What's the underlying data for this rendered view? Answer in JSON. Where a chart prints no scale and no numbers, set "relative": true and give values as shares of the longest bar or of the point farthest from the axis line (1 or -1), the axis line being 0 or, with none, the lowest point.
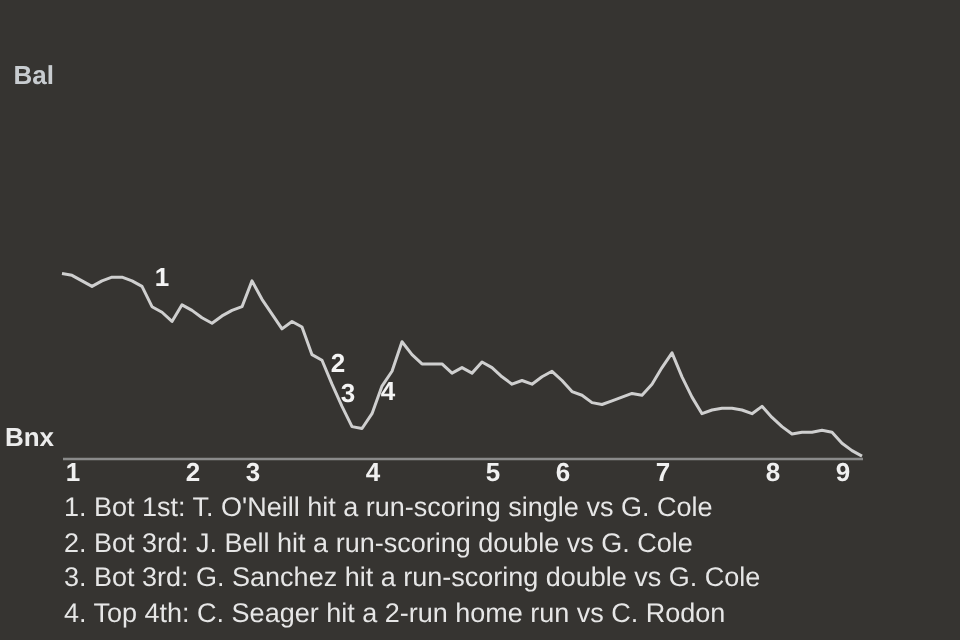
{
  "chart_data": {
    "type": "line",
    "relative": true,
    "categories": [
      null,
      "1",
      null,
      null,
      null,
      null,
      null,
      null,
      null,
      null,
      null,
      null,
      null,
      "2",
      null,
      null,
      null,
      null,
      null,
      "3",
      null,
      null,
      null,
      null,
      null,
      null,
      null,
      null,
      null,
      null,
      null,
      "4",
      null,
      null,
      null,
      null,
      null,
      null,
      null,
      null,
      null,
      null,
      null,
      "5",
      null,
      null,
      null,
      null,
      null,
      null,
      "6",
      null,
      null,
      null,
      null,
      null,
      null,
      null,
      null,
      null,
      "7",
      null,
      null,
      null,
      null,
      null,
      null,
      null,
      null,
      null,
      null,
      "8",
      null,
      null,
      null,
      null,
      null,
      null,
      "9",
      null,
      null
    ],
    "values": [
      1,
      0.99,
      0.96,
      0.93,
      0.96,
      0.98,
      0.98,
      0.96,
      0.93,
      0.82,
      0.79,
      0.74,
      0.83,
      0.8,
      0.76,
      0.73,
      0.77,
      0.8,
      0.82,
      0.96,
      0.86,
      0.78,
      0.7,
      0.74,
      0.71,
      0.56,
      0.53,
      0.4,
      0.28,
      0.17,
      0.16,
      0.24,
      0.39,
      0.47,
      0.63,
      0.56,
      0.51,
      0.51,
      0.51,
      0.46,
      0.49,
      0.46,
      0.52,
      0.49,
      0.44,
      0.4,
      0.42,
      0.4,
      0.44,
      0.47,
      0.42,
      0.36,
      0.34,
      0.3,
      0.29,
      0.31,
      0.33,
      0.35,
      0.34,
      0.4,
      0.49,
      0.57,
      0.44,
      0.33,
      0.24,
      0.26,
      0.27,
      0.27,
      0.26,
      0.24,
      0.28,
      0.22,
      0.17,
      0.13,
      0.14,
      0.14,
      0.15,
      0.14,
      0.08,
      0.04,
      0.01
    ],
    "color": "#cfcfcf",
    "annotations": [
      "Bal",
      "Bnx",
      "1",
      "2",
      "3",
      "4",
      "1. Bot 1st: T. O'Neill hit a run-scoring single vs G. Cole",
      "2. Bot 3rd: J. Bell hit a run-scoring double vs G. Cole",
      "3. Bot 3rd: G. Sanchez hit a run-scoring double vs G. Cole",
      "4. Top 4th: C. Seager hit a 2-run home run vs C. Rodon"
    ]
  }
}
